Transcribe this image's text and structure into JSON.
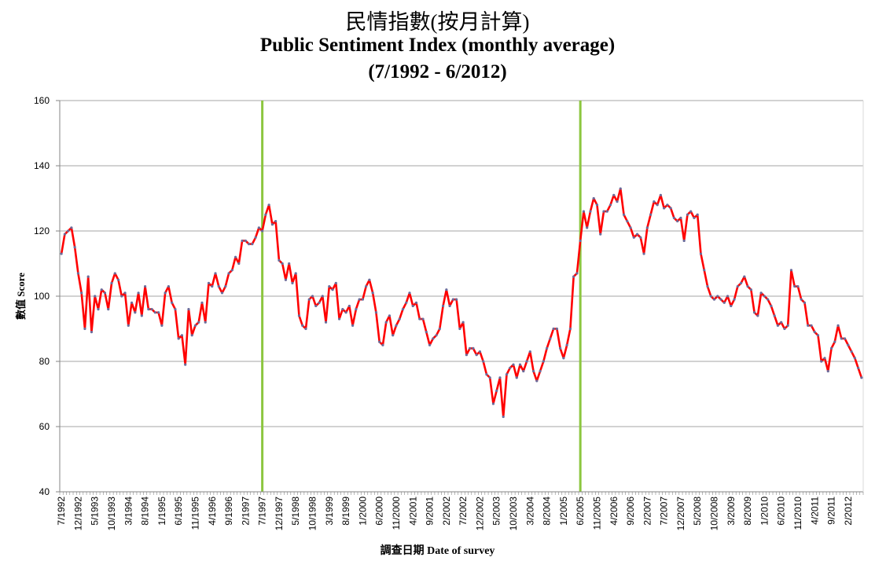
{
  "chart_data": {
    "type": "line",
    "title_zh": "民情指數(按月計算)",
    "title": "Public Sentiment Index (monthly average)",
    "subtitle": "(7/1992 - 6/2012)",
    "ylabel": "數值 Score",
    "xlabel": "調查日期   Date of survey",
    "ylim": [
      40,
      160
    ],
    "yticks": [
      40,
      60,
      80,
      100,
      120,
      140,
      160
    ],
    "grid": true,
    "legend": "none",
    "colors": {
      "line": "#ff0000",
      "marker": "#6b6b9a",
      "vline": "#8cc63f",
      "grid": "#a6a6a6"
    },
    "start": "7/1992",
    "xtick_labels": [
      "7/1992",
      "12/1992",
      "5/1993",
      "10/1993",
      "3/1994",
      "8/1994",
      "1/1995",
      "6/1995",
      "11/1995",
      "4/1996",
      "9/1996",
      "2/1997",
      "7/1997",
      "12/1997",
      "5/1998",
      "10/1998",
      "3/1999",
      "8/1999",
      "1/2000",
      "6/2000",
      "11/2000",
      "4/2001",
      "9/2001",
      "2/2002",
      "7/2002",
      "12/2002",
      "5/2003",
      "10/2003",
      "3/2004",
      "8/2004",
      "1/2005",
      "6/2005",
      "11/2005",
      "4/2006",
      "9/2006",
      "2/2007",
      "7/2007",
      "12/2007",
      "5/2008",
      "10/2008",
      "3/2009",
      "8/2009",
      "1/2010",
      "6/2010",
      "11/2010",
      "4/2011",
      "9/2011",
      "2/2012"
    ],
    "vlines": [
      "7/1997",
      "6/2005"
    ],
    "values": [
      113,
      119,
      120,
      121,
      115,
      107,
      101,
      90,
      106,
      89,
      100,
      96,
      102,
      101,
      96,
      104,
      107,
      105,
      100,
      101,
      91,
      98,
      95,
      101,
      94,
      103,
      96,
      96,
      95,
      95,
      91,
      101,
      103,
      98,
      96,
      87,
      88,
      79,
      96,
      88,
      91,
      92,
      98,
      92,
      104,
      103,
      107,
      103,
      101,
      103,
      107,
      108,
      112,
      110,
      117,
      117,
      116,
      116,
      118,
      121,
      120,
      125,
      128,
      122,
      123,
      111,
      110,
      105,
      110,
      104,
      107,
      94,
      91,
      90,
      99,
      100,
      97,
      98,
      100,
      92,
      103,
      102,
      104,
      93,
      96,
      95,
      97,
      91,
      96,
      99,
      99,
      103,
      105,
      101,
      95,
      86,
      85,
      92,
      94,
      88,
      91,
      93,
      96,
      98,
      101,
      97,
      98,
      93,
      93,
      89,
      85,
      87,
      88,
      90,
      97,
      102,
      97,
      99,
      99,
      90,
      92,
      82,
      84,
      84,
      82,
      83,
      80,
      76,
      75,
      67,
      71,
      75,
      63,
      76,
      78,
      79,
      75,
      79,
      77,
      80,
      83,
      77,
      74,
      77,
      80,
      84,
      87,
      90,
      90,
      84,
      81,
      85,
      90,
      106,
      107,
      117,
      126,
      121,
      126,
      130,
      128,
      119,
      126,
      126,
      128,
      131,
      129,
      133,
      125,
      123,
      121,
      118,
      119,
      118,
      113,
      121,
      125,
      129,
      128,
      131,
      127,
      128,
      127,
      124,
      123,
      124,
      117,
      125,
      126,
      124,
      125,
      113,
      108,
      103,
      100,
      99,
      100,
      99,
      98,
      100,
      97,
      99,
      103,
      104,
      106,
      103,
      102,
      95,
      94,
      101,
      100,
      99,
      97,
      94,
      91,
      92,
      90,
      91,
      108,
      103,
      103,
      99,
      98,
      91,
      91,
      89,
      88,
      80,
      81,
      77,
      84,
      86,
      91,
      87,
      87,
      85,
      83,
      81,
      78,
      75
    ]
  }
}
